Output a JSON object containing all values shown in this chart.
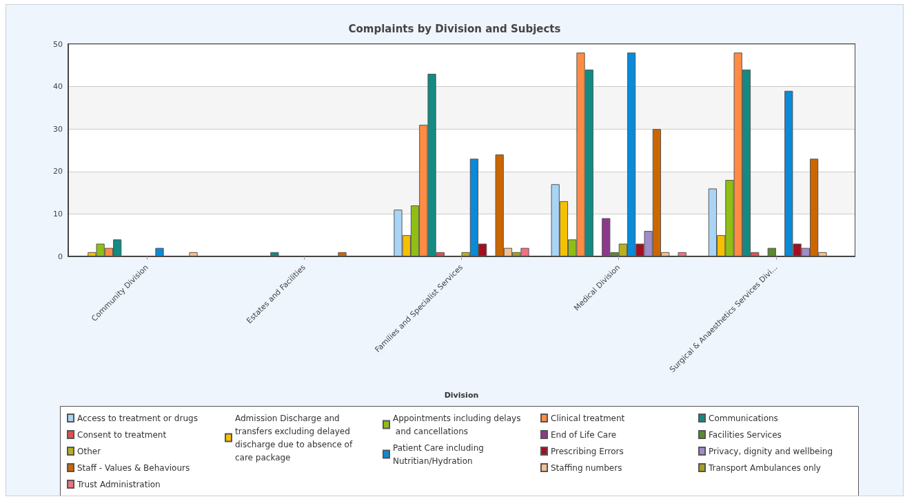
{
  "chart_data": {
    "type": "bar",
    "title": "Complaints by Division and Subjects",
    "xlabel": "Division",
    "categories": [
      "Community Division",
      "Estates and Facilities",
      "Families and Specialist Services",
      "Medical Division",
      "Surgical & Anaesthetics Services Divi..."
    ],
    "ylim": [
      0,
      50
    ],
    "yticks": [
      0,
      10,
      20,
      30,
      40,
      50
    ],
    "grid": "y",
    "legend": "bottom",
    "series": [
      {
        "name": "Access to treatment or drugs",
        "color": "#a8d4f5",
        "values": [
          0,
          0,
          11,
          17,
          16
        ]
      },
      {
        "name": "Admission Discharge and transfers excluding delayed discharge due to absence of care package",
        "color": "#f5c000",
        "values": [
          1,
          0,
          5,
          13,
          5
        ]
      },
      {
        "name": "Appointments including delays and cancellations",
        "color": "#8fbf14",
        "values": [
          3,
          0,
          12,
          4,
          18
        ]
      },
      {
        "name": "Clinical treatment",
        "color": "#ff8c42",
        "values": [
          2,
          0,
          31,
          48,
          48
        ]
      },
      {
        "name": "Communications",
        "color": "#138a82",
        "values": [
          4,
          1,
          43,
          44,
          44
        ]
      },
      {
        "name": "Consent to treatment",
        "color": "#e05050",
        "values": [
          0,
          0,
          1,
          0,
          1
        ]
      },
      {
        "name": "End of Life Care",
        "color": "#8b3a8b",
        "values": [
          0,
          0,
          0,
          9,
          0
        ]
      },
      {
        "name": "Facilities Services",
        "color": "#5a8a2e",
        "values": [
          0,
          0,
          0,
          1,
          2
        ]
      },
      {
        "name": "Other",
        "color": "#b8b020",
        "values": [
          0,
          0,
          1,
          3,
          0
        ]
      },
      {
        "name": "Patient Care including Nutritian/Hydration",
        "color": "#0a8ad8",
        "values": [
          2,
          0,
          23,
          48,
          39
        ]
      },
      {
        "name": "Prescribing Errors",
        "color": "#a01020",
        "values": [
          0,
          0,
          3,
          3,
          3
        ]
      },
      {
        "name": "Privacy, dignity and wellbeing",
        "color": "#a08cc8",
        "values": [
          0,
          0,
          0,
          6,
          2
        ]
      },
      {
        "name": "Staff - Values & Behaviours",
        "color": "#cc6600",
        "values": [
          0,
          1,
          24,
          30,
          23
        ]
      },
      {
        "name": "Staffing numbers",
        "color": "#f5c090",
        "values": [
          1,
          0,
          2,
          1,
          1
        ]
      },
      {
        "name": "Transport Ambulances only",
        "color": "#a8a018",
        "values": [
          0,
          0,
          1,
          0,
          0
        ]
      },
      {
        "name": "Trust Administration",
        "color": "#f07080",
        "values": [
          0,
          0,
          2,
          1,
          0
        ]
      }
    ]
  }
}
